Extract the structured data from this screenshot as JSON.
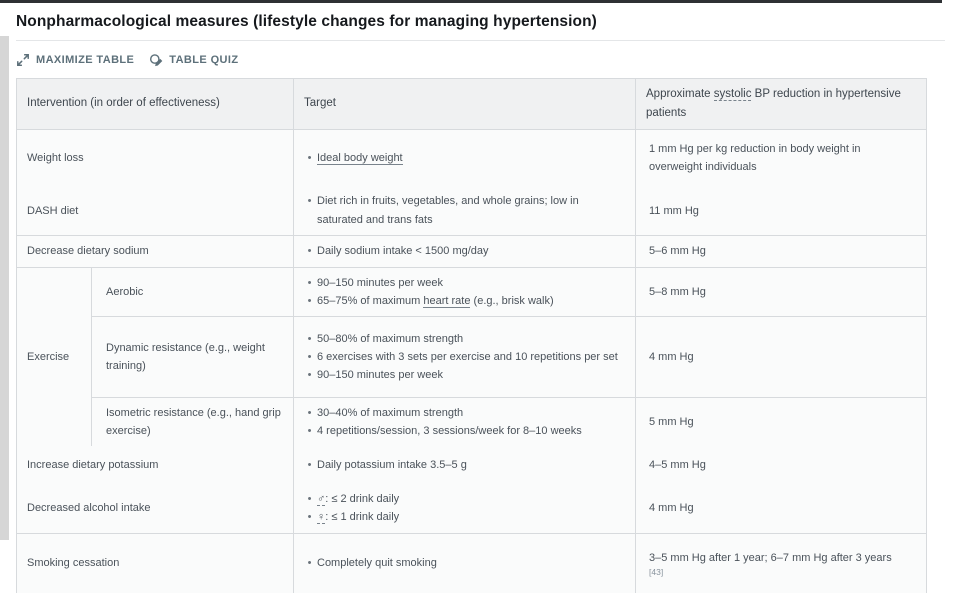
{
  "page": {
    "title": "Nonpharmacological measures (lifestyle changes for managing hypertension)",
    "toolbar": {
      "maximize_label": "MAXIMIZE TABLE",
      "quiz_label": "TABLE QUIZ"
    }
  },
  "colors": {
    "accent": "#5d707a",
    "border": "#d7dadd",
    "header_bg": "#f0f1f2",
    "cell_bg": "#fafbfb",
    "text": "#4a525a",
    "title": "#16191d"
  },
  "table": {
    "headers": [
      {
        "segments": [
          {
            "t": "Intervention (in order of effectiveness)"
          }
        ]
      },
      {
        "segments": [
          {
            "t": "Target"
          }
        ]
      },
      {
        "segments": [
          {
            "t": "Approximate "
          },
          {
            "t": "systolic",
            "style": "dashed"
          },
          {
            "t": " BP reduction in hypertensive patients"
          }
        ]
      }
    ],
    "rows": [
      {
        "id": "weight-loss",
        "intervention": [
          {
            "t": "Weight loss"
          }
        ],
        "targets": [
          [
            {
              "t": "Ideal body weight",
              "style": "solid"
            }
          ]
        ],
        "reduction": [
          {
            "t": "1 mm Hg per kg reduction in body weight in overweight individuals"
          }
        ]
      },
      {
        "id": "dash-diet",
        "intervention": [
          {
            "t": "DASH diet"
          }
        ],
        "targets": [
          [
            {
              "t": "Diet rich in fruits, vegetables, and whole grains; low in saturated and trans fats"
            }
          ]
        ],
        "reduction": [
          {
            "t": "11 mm Hg"
          }
        ]
      },
      {
        "id": "sodium",
        "intervention": [
          {
            "t": "Decrease dietary sodium"
          }
        ],
        "targets": [
          [
            {
              "t": "Daily sodium intake < 1500 mg/day"
            }
          ]
        ],
        "reduction": [
          {
            "t": "5–6 mm Hg"
          }
        ]
      },
      {
        "id": "aerobic",
        "group": {
          "label": "Exercise",
          "rowspan": 3
        },
        "sub": [
          {
            "t": "Aerobic"
          }
        ],
        "targets": [
          [
            {
              "t": "90–150 minutes per week"
            }
          ],
          [
            {
              "t": "65–75% of maximum "
            },
            {
              "t": "heart rate",
              "style": "solid"
            },
            {
              "t": " (e.g., brisk walk)"
            }
          ]
        ],
        "reduction": [
          {
            "t": "5–8 mm Hg"
          }
        ]
      },
      {
        "id": "dynamic",
        "sub": [
          {
            "t": "Dynamic resistance (e.g., weight training)"
          }
        ],
        "targets": [
          [
            {
              "t": "50–80% of maximum strength"
            }
          ],
          [
            {
              "t": "6 exercises with 3 sets per exercise and 10 repetitions per set"
            }
          ],
          [
            {
              "t": "90–150 minutes per week"
            }
          ]
        ],
        "reduction": [
          {
            "t": "4 mm Hg"
          }
        ]
      },
      {
        "id": "isometric",
        "sub": [
          {
            "t": "Isometric resistance (e.g., hand grip exercise)"
          }
        ],
        "targets": [
          [
            {
              "t": "30–40% of maximum strength"
            }
          ],
          [
            {
              "t": "4 repetitions/session, 3 sessions/week for 8–10 weeks"
            }
          ]
        ],
        "reduction": [
          {
            "t": "5 mm Hg"
          }
        ]
      },
      {
        "id": "potassium",
        "intervention": [
          {
            "t": "Increase dietary potassium"
          }
        ],
        "targets": [
          [
            {
              "t": "Daily potassium intake 3.5–5 g"
            }
          ]
        ],
        "reduction": [
          {
            "t": "4–5 mm Hg"
          }
        ]
      },
      {
        "id": "alcohol",
        "intervention": [
          {
            "t": "Decreased alcohol intake"
          }
        ],
        "targets": [
          [
            {
              "t": "♂",
              "style": "dashed"
            },
            {
              "t": ": ≤ 2 drink daily"
            }
          ],
          [
            {
              "t": "♀",
              "style": "dashed"
            },
            {
              "t": ": ≤ 1 drink daily"
            }
          ]
        ],
        "reduction": [
          {
            "t": "4 mm Hg"
          }
        ]
      },
      {
        "id": "smoking",
        "intervention": [
          {
            "t": "Smoking cessation"
          }
        ],
        "targets": [
          [
            {
              "t": "Completely quit smoking"
            }
          ]
        ],
        "reduction": [
          {
            "t": "3–5 mm Hg after 1 year; 6–7 mm Hg after 3 years"
          },
          {
            "t": "[43]",
            "ref": true
          }
        ]
      }
    ]
  }
}
